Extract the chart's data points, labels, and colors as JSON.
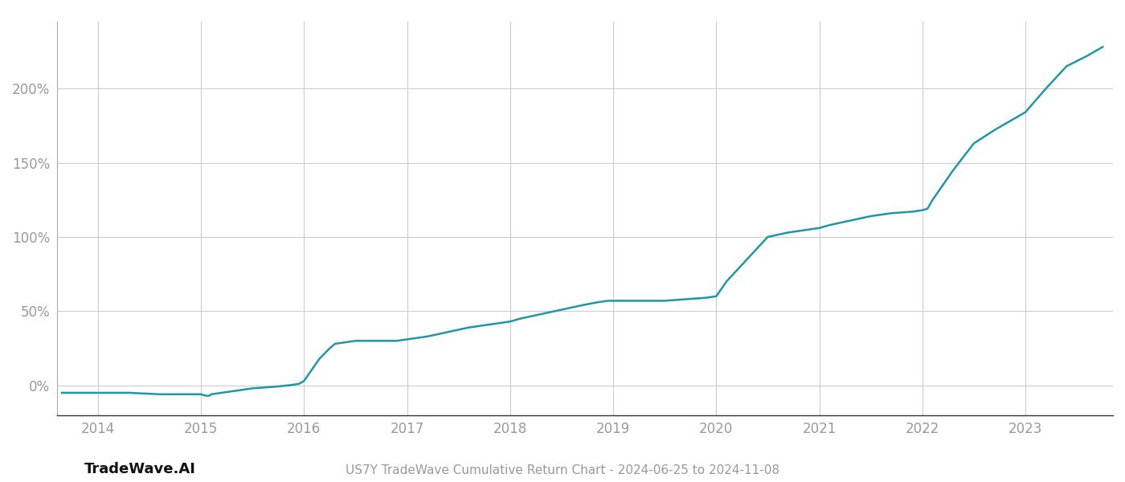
{
  "title": "US7Y TradeWave Cumulative Return Chart - 2024-06-25 to 2024-11-08",
  "watermark": "TradeWave.AI",
  "line_color": "#2196a6",
  "line_width": 1.8,
  "background_color": "#ffffff",
  "grid_color": "#cccccc",
  "x_years": [
    2014,
    2015,
    2016,
    2017,
    2018,
    2019,
    2020,
    2021,
    2022,
    2023
  ],
  "y_ticks": [
    0,
    50,
    100,
    150,
    200
  ],
  "ylim": [
    -20,
    245
  ],
  "xlim": [
    2013.6,
    2023.85
  ],
  "data_x": [
    2013.65,
    2013.8,
    2014.0,
    2014.3,
    2014.6,
    2014.9,
    2015.0,
    2015.05,
    2015.08,
    2015.1,
    2015.3,
    2015.5,
    2015.7,
    2015.85,
    2015.95,
    2016.0,
    2016.05,
    2016.15,
    2016.25,
    2016.3,
    2016.5,
    2016.7,
    2016.9,
    2017.0,
    2017.2,
    2017.4,
    2017.6,
    2017.8,
    2018.0,
    2018.1,
    2018.3,
    2018.5,
    2018.7,
    2018.85,
    2018.95,
    2019.0,
    2019.05,
    2019.1,
    2019.3,
    2019.5,
    2019.7,
    2019.9,
    2020.0,
    2020.1,
    2020.3,
    2020.5,
    2020.7,
    2020.9,
    2021.0,
    2021.1,
    2021.3,
    2021.5,
    2021.7,
    2021.9,
    2022.0,
    2022.05,
    2022.1,
    2022.3,
    2022.5,
    2022.7,
    2022.9,
    2023.0,
    2023.2,
    2023.4,
    2023.6,
    2023.75
  ],
  "data_y": [
    -5,
    -5,
    -5,
    -5,
    -6,
    -6,
    -6,
    -7,
    -7,
    -6,
    -4,
    -2,
    -1,
    0,
    1,
    3,
    8,
    18,
    25,
    28,
    30,
    30,
    30,
    31,
    33,
    36,
    39,
    41,
    43,
    45,
    48,
    51,
    54,
    56,
    57,
    57,
    57,
    57,
    57,
    57,
    58,
    59,
    60,
    70,
    85,
    100,
    103,
    105,
    106,
    108,
    111,
    114,
    116,
    117,
    118,
    119,
    125,
    145,
    163,
    172,
    180,
    184,
    200,
    215,
    222,
    228
  ],
  "tick_label_color": "#999999",
  "tick_fontsize": 12,
  "title_fontsize": 11,
  "watermark_fontsize": 13
}
